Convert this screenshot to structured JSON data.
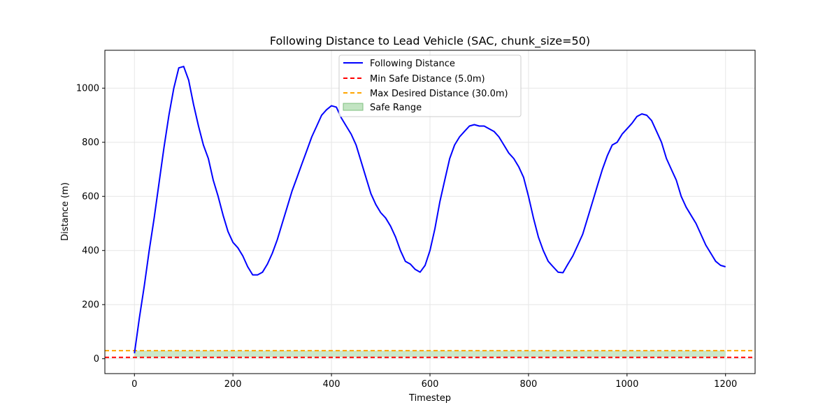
{
  "chart_data": {
    "type": "line",
    "title": "Following Distance to Lead Vehicle (SAC, chunk_size=50)",
    "xlabel": "Timestep",
    "ylabel": "Distance (m)",
    "xlim": [
      -60,
      1260
    ],
    "ylim": [
      -55,
      1140
    ],
    "xticks": [
      0,
      200,
      400,
      600,
      800,
      1000,
      1200
    ],
    "yticks": [
      0,
      200,
      400,
      600,
      800,
      1000
    ],
    "grid": true,
    "legend_position": "upper center",
    "legend": {
      "series_label": "Following Distance",
      "min_label": "Min Safe Distance (5.0m)",
      "max_label": "Max Desired Distance (30.0m)",
      "range_label": "Safe Range"
    },
    "colors": {
      "series": "#0000ff",
      "min": "#ff0000",
      "max": "#ffa500",
      "range": "#a8d8a8"
    },
    "series": [
      {
        "name": "Following Distance",
        "x": [
          0,
          10,
          20,
          30,
          40,
          50,
          60,
          70,
          80,
          90,
          100,
          110,
          120,
          130,
          140,
          150,
          160,
          170,
          180,
          190,
          200,
          210,
          220,
          230,
          240,
          250,
          260,
          270,
          280,
          290,
          300,
          310,
          320,
          330,
          340,
          350,
          360,
          370,
          380,
          390,
          400,
          410,
          420,
          430,
          440,
          450,
          460,
          470,
          480,
          490,
          500,
          510,
          520,
          530,
          540,
          550,
          560,
          570,
          580,
          590,
          600,
          610,
          620,
          630,
          640,
          650,
          660,
          670,
          680,
          690,
          700,
          710,
          720,
          730,
          740,
          750,
          760,
          770,
          780,
          790,
          800,
          810,
          820,
          830,
          840,
          850,
          860,
          870,
          880,
          890,
          900,
          910,
          920,
          930,
          940,
          950,
          960,
          970,
          980,
          990,
          1000,
          1010,
          1020,
          1030,
          1040,
          1050,
          1060,
          1070,
          1080,
          1090,
          1100,
          1110,
          1120,
          1130,
          1140,
          1150,
          1160,
          1170,
          1180,
          1190,
          1200
        ],
        "y": [
          20,
          150,
          270,
          400,
          520,
          650,
          780,
          900,
          1000,
          1075,
          1080,
          1030,
          940,
          860,
          790,
          740,
          660,
          600,
          530,
          470,
          430,
          410,
          380,
          340,
          310,
          310,
          320,
          350,
          390,
          440,
          500,
          560,
          620,
          670,
          720,
          770,
          820,
          860,
          900,
          920,
          935,
          930,
          890,
          860,
          830,
          790,
          730,
          670,
          610,
          570,
          540,
          520,
          490,
          450,
          400,
          360,
          350,
          330,
          320,
          345,
          400,
          480,
          580,
          660,
          740,
          790,
          820,
          840,
          860,
          865,
          860,
          860,
          850,
          840,
          820,
          790,
          760,
          740,
          710,
          670,
          600,
          520,
          450,
          400,
          360,
          340,
          320,
          318,
          350,
          380,
          420,
          460,
          520,
          580,
          640,
          700,
          750,
          790,
          800,
          830,
          850,
          870,
          895,
          905,
          900,
          880,
          840,
          800,
          740,
          700,
          660,
          600,
          560,
          530,
          500,
          460,
          420,
          390,
          360,
          345,
          340
        ]
      }
    ],
    "min_safe_distance": 5.0,
    "max_desired_distance": 30.0
  }
}
